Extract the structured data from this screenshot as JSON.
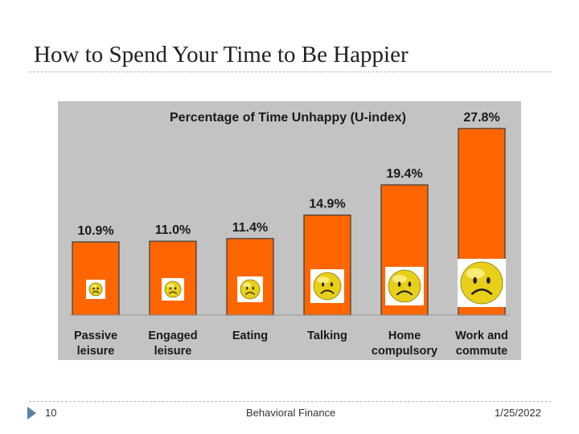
{
  "slide": {
    "title": "How to Spend Your Time to Be Happier",
    "page_number": "10",
    "footer_center": "Behavioral Finance",
    "footer_date": "1/25/2022"
  },
  "colors": {
    "panel_bg": "#c3c3c3",
    "bar": "#ff6600",
    "bar_edge": "#3a3a3a",
    "face": "#e8cf1a",
    "face_highlight": "#fff7a0"
  },
  "chart_data": {
    "type": "bar",
    "title": "Percentage of Time Unhappy (U-index)",
    "categories": [
      [
        "Passive",
        "leisure"
      ],
      [
        "Engaged",
        "leisure"
      ],
      [
        "Eating"
      ],
      [
        "Talking"
      ],
      [
        "Home",
        "compulsory"
      ],
      [
        "Work and",
        "commute"
      ]
    ],
    "values": [
      10.9,
      11.0,
      11.4,
      14.9,
      19.4,
      27.8
    ],
    "data_labels": [
      "10.9%",
      "11.0%",
      "11.4%",
      "14.9%",
      "19.4%",
      "27.8%"
    ],
    "xlabel": "",
    "ylabel": "",
    "ylim": [
      0,
      30
    ],
    "grid": false,
    "legend": "none",
    "bar_icon": "sad-face-icon"
  }
}
